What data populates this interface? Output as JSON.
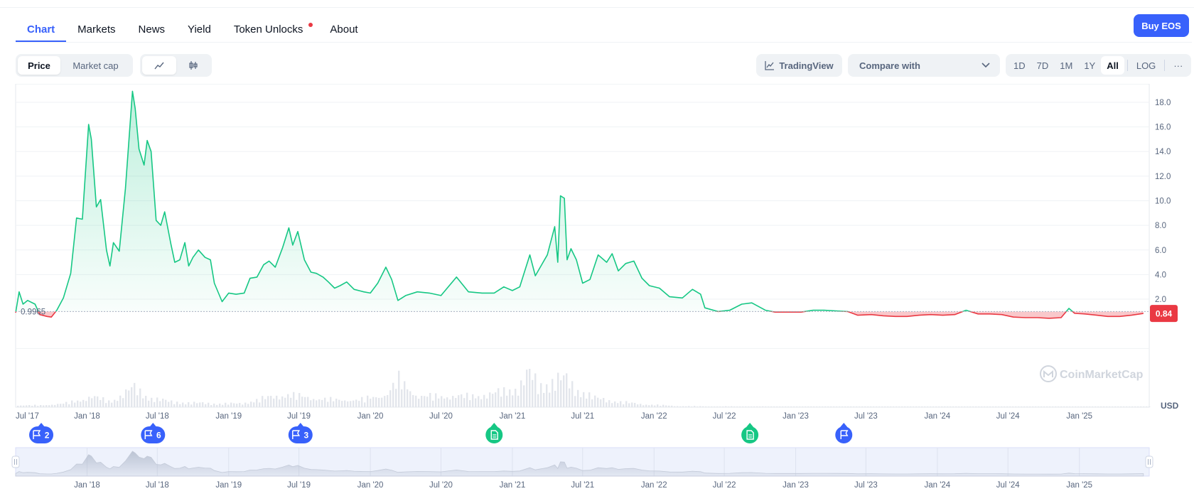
{
  "tabs": [
    {
      "label": "Chart",
      "active": true
    },
    {
      "label": "Markets"
    },
    {
      "label": "News"
    },
    {
      "label": "Yield"
    },
    {
      "label": "Token Unlocks",
      "has_dot": true
    },
    {
      "label": "About"
    }
  ],
  "buy_button": "Buy EOS",
  "metric_toggle": {
    "options": [
      "Price",
      "Market cap"
    ],
    "selected": "Price"
  },
  "chart_style_toggle": {
    "icons": [
      "line-chart-icon",
      "candlestick-icon"
    ],
    "selected": "line-chart-icon"
  },
  "tradingview_label": "TradingView",
  "compare_placeholder": "Compare with",
  "time_ranges": [
    "1D",
    "7D",
    "1M",
    "1Y",
    "All"
  ],
  "selected_range": "All",
  "log_label": "LOG",
  "more_label": "···",
  "watermark": "CoinMarketCap",
  "colors": {
    "up": "#16c784",
    "down": "#ea3943",
    "accent": "#3861fb"
  },
  "chart_data": {
    "type": "line",
    "title": "",
    "xlabel": "",
    "ylabel": "USD",
    "ylim": [
      -1,
      19.5
    ],
    "yticks": [
      2.0,
      4.0,
      6.0,
      8.0,
      10.0,
      12.0,
      14.0,
      16.0,
      18.0
    ],
    "ytick_labels": [
      "2.0",
      "4.0",
      "6.0",
      "8.0",
      "10.0",
      "12.0",
      "14.0",
      "16.0",
      "18.0"
    ],
    "x_range": [
      "2017-07-01",
      "2025-06-30"
    ],
    "x_ticks": [
      {
        "date": "2017-07-01",
        "label": "Jul '17"
      },
      {
        "date": "2018-01-01",
        "label": "Jan '18"
      },
      {
        "date": "2018-07-01",
        "label": "Jul '18"
      },
      {
        "date": "2019-01-01",
        "label": "Jan '19"
      },
      {
        "date": "2019-07-01",
        "label": "Jul '19"
      },
      {
        "date": "2020-01-01",
        "label": "Jan '20"
      },
      {
        "date": "2020-07-01",
        "label": "Jul '20"
      },
      {
        "date": "2021-01-01",
        "label": "Jan '21"
      },
      {
        "date": "2021-07-01",
        "label": "Jul '21"
      },
      {
        "date": "2022-01-01",
        "label": "Jan '22"
      },
      {
        "date": "2022-07-01",
        "label": "Jul '22"
      },
      {
        "date": "2023-01-01",
        "label": "Jan '23"
      },
      {
        "date": "2023-07-01",
        "label": "Jul '23"
      },
      {
        "date": "2024-01-01",
        "label": "Jan '24"
      },
      {
        "date": "2024-07-01",
        "label": "Jul '24"
      },
      {
        "date": "2025-01-01",
        "label": "Jan '25"
      }
    ],
    "reference_price": 0.9965,
    "reference_label": "0.9965",
    "current_price": 0.84,
    "current_label": "0.84",
    "series": [
      {
        "points": [
          [
            "2017-07-01",
            0.9
          ],
          [
            "2017-07-10",
            2.6
          ],
          [
            "2017-07-20",
            1.6
          ],
          [
            "2017-08-01",
            1.9
          ],
          [
            "2017-08-20",
            1.6
          ],
          [
            "2017-09-01",
            0.75
          ],
          [
            "2017-09-20",
            0.6
          ],
          [
            "2017-10-01",
            0.55
          ],
          [
            "2017-10-15",
            1.1
          ],
          [
            "2017-11-01",
            2.1
          ],
          [
            "2017-11-20",
            4.1
          ],
          [
            "2017-12-05",
            8.6
          ],
          [
            "2017-12-20",
            8.5
          ],
          [
            "2018-01-05",
            16.2
          ],
          [
            "2018-01-12",
            15.0
          ],
          [
            "2018-01-25",
            9.5
          ],
          [
            "2018-02-05",
            10.1
          ],
          [
            "2018-02-20",
            6.0
          ],
          [
            "2018-03-01",
            4.7
          ],
          [
            "2018-03-10",
            6.6
          ],
          [
            "2018-03-25",
            5.9
          ],
          [
            "2018-04-10",
            11.0
          ],
          [
            "2018-04-28",
            18.9
          ],
          [
            "2018-05-05",
            17.5
          ],
          [
            "2018-05-15",
            14.2
          ],
          [
            "2018-05-28",
            12.9
          ],
          [
            "2018-06-05",
            14.9
          ],
          [
            "2018-06-15",
            14.0
          ],
          [
            "2018-06-28",
            8.4
          ],
          [
            "2018-07-10",
            8.0
          ],
          [
            "2018-07-20",
            9.1
          ],
          [
            "2018-08-05",
            6.5
          ],
          [
            "2018-08-15",
            5.0
          ],
          [
            "2018-08-28",
            5.2
          ],
          [
            "2018-09-10",
            6.6
          ],
          [
            "2018-09-20",
            4.7
          ],
          [
            "2018-10-01",
            5.4
          ],
          [
            "2018-10-15",
            6.0
          ],
          [
            "2018-11-01",
            5.4
          ],
          [
            "2018-11-15",
            5.2
          ],
          [
            "2018-11-25",
            3.3
          ],
          [
            "2018-12-15",
            1.8
          ],
          [
            "2019-01-01",
            2.5
          ],
          [
            "2019-01-20",
            2.4
          ],
          [
            "2019-02-10",
            2.5
          ],
          [
            "2019-02-25",
            3.7
          ],
          [
            "2019-03-15",
            3.8
          ],
          [
            "2019-04-01",
            4.8
          ],
          [
            "2019-04-15",
            5.1
          ],
          [
            "2019-05-01",
            4.6
          ],
          [
            "2019-05-20",
            6.2
          ],
          [
            "2019-06-05",
            7.8
          ],
          [
            "2019-06-15",
            6.4
          ],
          [
            "2019-06-28",
            7.5
          ],
          [
            "2019-07-15",
            5.2
          ],
          [
            "2019-08-01",
            4.2
          ],
          [
            "2019-08-15",
            4.1
          ],
          [
            "2019-09-01",
            3.8
          ],
          [
            "2019-09-15",
            3.4
          ],
          [
            "2019-10-01",
            2.9
          ],
          [
            "2019-10-15",
            3.1
          ],
          [
            "2019-11-01",
            3.4
          ],
          [
            "2019-11-20",
            2.8
          ],
          [
            "2019-12-15",
            2.6
          ],
          [
            "2020-01-01",
            2.5
          ],
          [
            "2020-01-20",
            3.3
          ],
          [
            "2020-02-10",
            4.6
          ],
          [
            "2020-02-25",
            3.6
          ],
          [
            "2020-03-12",
            1.9
          ],
          [
            "2020-04-01",
            2.3
          ],
          [
            "2020-05-01",
            2.6
          ],
          [
            "2020-06-01",
            2.5
          ],
          [
            "2020-07-01",
            2.3
          ],
          [
            "2020-08-10",
            3.8
          ],
          [
            "2020-09-10",
            2.6
          ],
          [
            "2020-10-15",
            2.5
          ],
          [
            "2020-11-15",
            2.5
          ],
          [
            "2020-12-10",
            3.0
          ],
          [
            "2021-01-01",
            2.7
          ],
          [
            "2021-01-20",
            3.0
          ],
          [
            "2021-02-15",
            5.6
          ],
          [
            "2021-03-01",
            3.9
          ],
          [
            "2021-04-01",
            5.6
          ],
          [
            "2021-04-20",
            7.9
          ],
          [
            "2021-04-28",
            5.0
          ],
          [
            "2021-05-05",
            10.4
          ],
          [
            "2021-05-15",
            10.2
          ],
          [
            "2021-05-22",
            5.2
          ],
          [
            "2021-06-01",
            6.1
          ],
          [
            "2021-06-15",
            5.2
          ],
          [
            "2021-07-01",
            3.3
          ],
          [
            "2021-07-20",
            3.6
          ],
          [
            "2021-08-10",
            5.6
          ],
          [
            "2021-09-01",
            5.0
          ],
          [
            "2021-09-15",
            5.7
          ],
          [
            "2021-10-01",
            4.3
          ],
          [
            "2021-10-20",
            4.9
          ],
          [
            "2021-11-10",
            5.1
          ],
          [
            "2021-12-01",
            3.7
          ],
          [
            "2021-12-20",
            3.1
          ],
          [
            "2022-01-15",
            2.9
          ],
          [
            "2022-02-10",
            2.2
          ],
          [
            "2022-03-15",
            2.1
          ],
          [
            "2022-04-10",
            2.8
          ],
          [
            "2022-05-01",
            2.4
          ],
          [
            "2022-05-12",
            1.3
          ],
          [
            "2022-06-15",
            1.0
          ],
          [
            "2022-07-15",
            1.1
          ],
          [
            "2022-08-15",
            1.6
          ],
          [
            "2022-09-10",
            1.7
          ],
          [
            "2022-10-15",
            1.1
          ],
          [
            "2022-11-09",
            0.95
          ],
          [
            "2022-12-15",
            0.95
          ],
          [
            "2023-01-15",
            0.95
          ],
          [
            "2023-02-15",
            1.1
          ],
          [
            "2023-03-15",
            1.1
          ],
          [
            "2023-04-15",
            1.05
          ],
          [
            "2023-05-15",
            1.0
          ],
          [
            "2023-06-10",
            0.7
          ],
          [
            "2023-07-15",
            0.75
          ],
          [
            "2023-08-15",
            0.65
          ],
          [
            "2023-09-15",
            0.6
          ],
          [
            "2023-10-15",
            0.6
          ],
          [
            "2023-11-15",
            0.7
          ],
          [
            "2023-12-15",
            0.75
          ],
          [
            "2024-01-15",
            0.7
          ],
          [
            "2024-02-15",
            0.75
          ],
          [
            "2024-03-15",
            1.1
          ],
          [
            "2024-04-15",
            0.8
          ],
          [
            "2024-05-15",
            0.8
          ],
          [
            "2024-06-15",
            0.75
          ],
          [
            "2024-07-15",
            0.55
          ],
          [
            "2024-08-15",
            0.5
          ],
          [
            "2024-09-15",
            0.5
          ],
          [
            "2024-10-15",
            0.45
          ],
          [
            "2024-11-15",
            0.5
          ],
          [
            "2024-12-05",
            1.25
          ],
          [
            "2024-12-20",
            0.85
          ],
          [
            "2025-01-15",
            0.8
          ],
          [
            "2025-02-15",
            0.7
          ],
          [
            "2025-03-15",
            0.6
          ],
          [
            "2025-04-15",
            0.6
          ],
          [
            "2025-05-15",
            0.7
          ],
          [
            "2025-06-15",
            0.84
          ]
        ]
      }
    ],
    "volume": [
      [
        "2017-07-01",
        0.05
      ],
      [
        "2017-09-01",
        0.05
      ],
      [
        "2017-11-01",
        0.1
      ],
      [
        "2017-12-15",
        0.2
      ],
      [
        "2018-01-10",
        0.3
      ],
      [
        "2018-03-01",
        0.15
      ],
      [
        "2018-04-28",
        0.55
      ],
      [
        "2018-06-01",
        0.3
      ],
      [
        "2018-08-01",
        0.15
      ],
      [
        "2018-10-01",
        0.12
      ],
      [
        "2018-12-01",
        0.1
      ],
      [
        "2019-02-01",
        0.1
      ],
      [
        "2019-04-01",
        0.25
      ],
      [
        "2019-06-01",
        0.35
      ],
      [
        "2019-08-01",
        0.25
      ],
      [
        "2019-10-01",
        0.2
      ],
      [
        "2019-12-01",
        0.2
      ],
      [
        "2020-02-10",
        0.35
      ],
      [
        "2020-03-12",
        0.75
      ],
      [
        "2020-05-01",
        0.3
      ],
      [
        "2020-07-01",
        0.3
      ],
      [
        "2020-09-01",
        0.3
      ],
      [
        "2020-11-01",
        0.35
      ],
      [
        "2021-01-15",
        0.55
      ],
      [
        "2021-02-10",
        0.95
      ],
      [
        "2021-03-10",
        0.6
      ],
      [
        "2021-04-20",
        0.75
      ],
      [
        "2021-05-15",
        0.8
      ],
      [
        "2021-06-15",
        0.5
      ],
      [
        "2021-08-01",
        0.25
      ],
      [
        "2021-10-01",
        0.15
      ],
      [
        "2021-12-01",
        0.08
      ],
      [
        "2022-03-01",
        0.03
      ],
      [
        "2022-06-01",
        0.02
      ],
      [
        "2022-09-01",
        0.02
      ],
      [
        "2023-01-01",
        0.01
      ],
      [
        "2023-06-01",
        0.01
      ],
      [
        "2024-01-01",
        0.01
      ],
      [
        "2024-07-01",
        0.01
      ],
      [
        "2025-01-01",
        0.01
      ],
      [
        "2025-06-15",
        0.01
      ]
    ],
    "markers": [
      {
        "date": "2017-09-05",
        "kind": "flag",
        "label": "2"
      },
      {
        "date": "2018-06-20",
        "kind": "flag",
        "label": "6"
      },
      {
        "date": "2019-07-05",
        "kind": "flag",
        "label": "3"
      },
      {
        "date": "2020-11-15",
        "kind": "doc",
        "label": ""
      },
      {
        "date": "2022-09-05",
        "kind": "doc",
        "label": ""
      },
      {
        "date": "2023-05-05",
        "kind": "flag",
        "label": ""
      }
    ]
  }
}
